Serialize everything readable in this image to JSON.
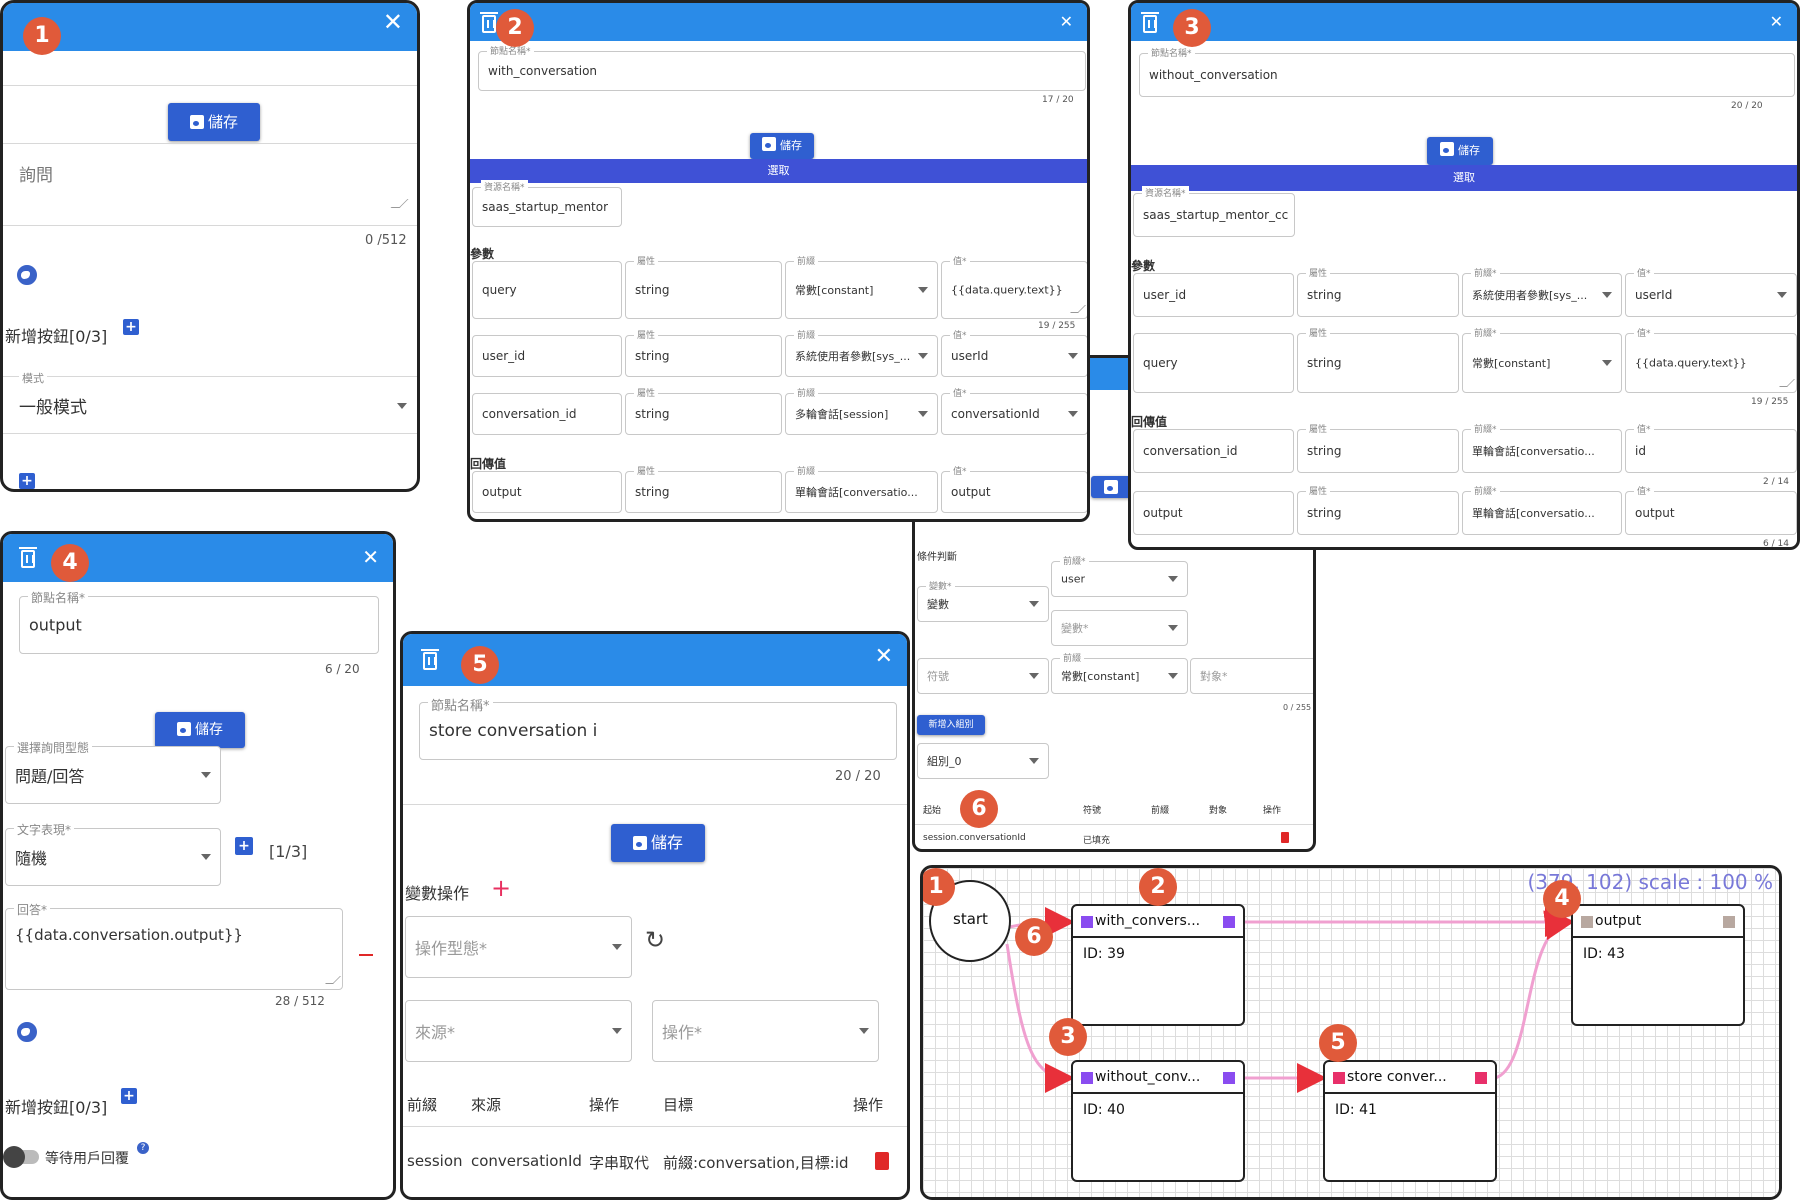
{
  "p1": {
    "badge": "1",
    "save": "儲存",
    "query_ph": "詢問",
    "count": "0 /512",
    "add_btn": "新增按鈕[0/3]",
    "mode_label": "模式",
    "mode_value": "一般模式"
  },
  "p2": {
    "badge": "2",
    "name_label": "節點名稱*",
    "name_value": "with_conversation",
    "name_count": "17 / 20",
    "save": "儲存",
    "select_bar": "選取",
    "res_label": "資源名稱*",
    "res_value": "saas_startup_mentor",
    "params_title": "參數",
    "return_title": "回傳值",
    "rows": [
      {
        "name": "query",
        "type": "string",
        "prefix": "常數[constant]",
        "value": "{{data.query.text}}",
        "count": "19 / 255"
      },
      {
        "name": "user_id",
        "type": "string",
        "prefix": "系統使用者參數[sys_...",
        "value": "userId"
      },
      {
        "name": "conversation_id",
        "type": "string",
        "prefix": "多輪會話[session]",
        "value": "conversationId"
      }
    ],
    "ret": {
      "name": "output",
      "type": "string",
      "prefix": "單輪會話[conversatio...",
      "value": "output"
    },
    "lab_type": "屬性",
    "lab_prefix": "前綴",
    "lab_value": "值*"
  },
  "p3": {
    "badge": "3",
    "name_label": "節點名稱*",
    "name_value": "without_conversation",
    "name_count": "20 / 20",
    "save": "儲存",
    "select_bar": "選取",
    "res_label": "資源名稱*",
    "res_value": "saas_startup_mentor_cc",
    "params_title": "參數",
    "return_title": "回傳值",
    "rows": [
      {
        "name": "user_id",
        "type": "string",
        "prefix": "系統使用者參數[sys_...",
        "value": "userId"
      },
      {
        "name": "query",
        "type": "string",
        "prefix": "常數[constant]",
        "value": "{{data.query.text}}",
        "count": "19 / 255"
      }
    ],
    "ret": [
      {
        "name": "conversation_id",
        "type": "string",
        "prefix": "單輪會話[conversatio...",
        "value": "id",
        "count": "2 / 14"
      },
      {
        "name": "output",
        "type": "string",
        "prefix": "單輪會話[conversatio...",
        "value": "output",
        "count": "6 / 14"
      }
    ],
    "lab_type": "屬性",
    "lab_prefix": "前綴*",
    "lab_value": "值*"
  },
  "p4": {
    "badge": "4",
    "name_label": "節點名稱*",
    "name_value": "output",
    "name_count": "6 / 20",
    "save": "儲存",
    "qtype_label": "選擇詢問型態",
    "qtype_value": "問題/回答",
    "text_label": "文字表現*",
    "text_value": "隨機",
    "text_count": "[1/3]",
    "answer_label": "回答*",
    "answer_value": "{{data.conversation.output}}",
    "answer_count": "28 / 512",
    "add_btn": "新增按鈕[0/3]",
    "wait": "等待用戶回覆"
  },
  "p5": {
    "badge": "5",
    "name_label": "節點名稱*",
    "name_value": "store conversation i",
    "name_count": "20 / 20",
    "save": "儲存",
    "var_ops": "變數操作",
    "op_type": "操作型態*",
    "source": "來源*",
    "operation": "操作*",
    "headers": [
      "前綴",
      "來源",
      "操作",
      "目標",
      "操作"
    ],
    "row": {
      "prefix": "session",
      "source": "conversationId",
      "op": "字串取代",
      "target": "前綴:conversation,目標:id"
    }
  },
  "p6": {
    "badge": "6",
    "cond_title": "條件判斷",
    "var_label": "變數*",
    "var_value": "變數",
    "user_label": "前綴*",
    "user_value": "user",
    "var2": "變數*",
    "symbol": "符號",
    "const_label": "前綴",
    "const_value": "常數[constant]",
    "obj": "對象*",
    "count": "0 / 255",
    "add_group": "新增入組別",
    "group": "組別_0",
    "table_headers": [
      "起始",
      "符號",
      "前綴",
      "對象",
      "操作"
    ],
    "table_row": [
      "session.conversationId",
      "已填充"
    ]
  },
  "flow": {
    "coords": "(379, 102) scale : 100 %",
    "start": "start",
    "nodes": [
      {
        "badge": "2",
        "name": "with_convers...",
        "id": "ID: 39",
        "color": "#8a4cf0"
      },
      {
        "badge": "3",
        "name": "without_conv...",
        "id": "ID: 40",
        "color": "#8a4cf0"
      },
      {
        "badge": "5",
        "name": "store conver...",
        "id": "ID: 41",
        "color": "#e8306a"
      },
      {
        "badge": "4",
        "name": "output",
        "id": "ID: 43",
        "color": "#b8a8a0"
      }
    ],
    "start_badge": "1",
    "edge_badge": "6"
  },
  "colors": {
    "header": "#2a8be8",
    "accent": "#3f51d6",
    "badge": "#e05a3a",
    "edge": "#f0a0d0"
  }
}
